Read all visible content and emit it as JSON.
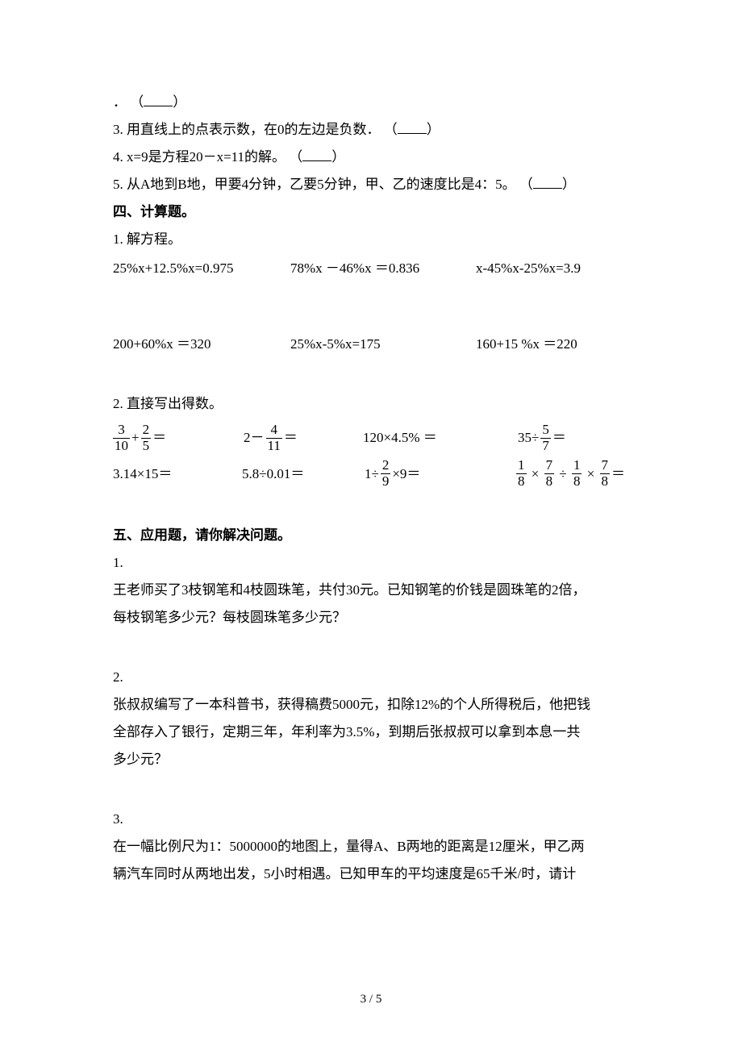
{
  "q_top": {
    "dot": "．",
    "open": "（",
    "close": "）",
    "blank_width": 36
  },
  "q3": {
    "num": "3.",
    "text": "用直线上的点表示数，在0的左边是负数．",
    "open": "（",
    "close": "）",
    "blank_width": 36
  },
  "q4": {
    "num": "4.",
    "text": "x=9是方程20－x=11的解。",
    "open": "（",
    "close": "）",
    "blank_width": 36
  },
  "q5": {
    "num": "5.",
    "text": "从A地到B地，甲要4分钟，乙要5分钟，甲、乙的速度比是4：5。",
    "open": "（",
    "close": "）",
    "blank_width": 36
  },
  "sec4_title": "四、计算题。",
  "sec4_q1": "1. 解方程。",
  "eq_row1": {
    "a": "25%x+12.5%x=0.975",
    "b": "78%x －46%x ＝0.836",
    "c": "x-45%x-25%x=3.9",
    "wa": 220,
    "wb": 230,
    "wc": 220
  },
  "eq_row2": {
    "a": "200+60%x ＝320",
    "b": "25%x-5%x=175",
    "c": "160+15 %x ＝220",
    "wa": 220,
    "wb": 230,
    "wc": 220
  },
  "sec4_q2": "2. 直接写出得数。",
  "calc_row1": {
    "c1": {
      "f1": {
        "n": "3",
        "d": "10"
      },
      "op": "+",
      "f2": {
        "n": "2",
        "d": "5"
      },
      "eq": "＝"
    },
    "c2": {
      "lead": "2－",
      "f": {
        "n": "4",
        "d": "11"
      },
      "eq": "＝"
    },
    "c3": "120×4.5% ＝",
    "c4": {
      "lead": "35÷",
      "f": {
        "n": "5",
        "d": "7"
      },
      "eq": "＝"
    },
    "w1": 160,
    "w2": 150,
    "w3": 190,
    "w4": 160
  },
  "calc_row2": {
    "c1": "3.14×15＝",
    "c2": "5.8÷0.01＝",
    "c3": {
      "lead": "1÷",
      "f": {
        "n": "2",
        "d": "9"
      },
      "tail": "×9＝"
    },
    "c4": {
      "parts": [
        {
          "n": "1",
          "d": "8"
        },
        " × ",
        {
          "n": "7",
          "d": "8"
        },
        " ÷ ",
        {
          "n": "1",
          "d": "8"
        },
        " × ",
        {
          "n": "7",
          "d": "8"
        }
      ],
      "eq": "＝"
    },
    "w1": 160,
    "w2": 150,
    "w3": 190,
    "w4": 200
  },
  "sec5_title": "五、应用题，请你解决问题。",
  "p1": {
    "num": "1.",
    "l1": "王老师买了3枝钢笔和4枝圆珠笔，共付30元。已知钢笔的价钱是圆珠笔的2倍，",
    "l2": "每枝钢笔多少元？每枝圆珠笔多少元？"
  },
  "p2": {
    "num": "2.",
    "l1": "张叔叔编写了一本科普书，获得稿费5000元，扣除12%的个人所得税后，他把钱",
    "l2": "全部存入了银行，定期三年，年利率为3.5%，到期后张叔叔可以拿到本息一共",
    "l3": "多少元？"
  },
  "p3": {
    "num": "3.",
    "l1": "在一幅比例尺为1：5000000的地图上，量得A、B两地的距离是12厘米，甲乙两",
    "l2": "辆汽车同时从两地出发，5小时相遇。已知甲车的平均速度是65千米/时，请计"
  },
  "page_num": "3 / 5"
}
